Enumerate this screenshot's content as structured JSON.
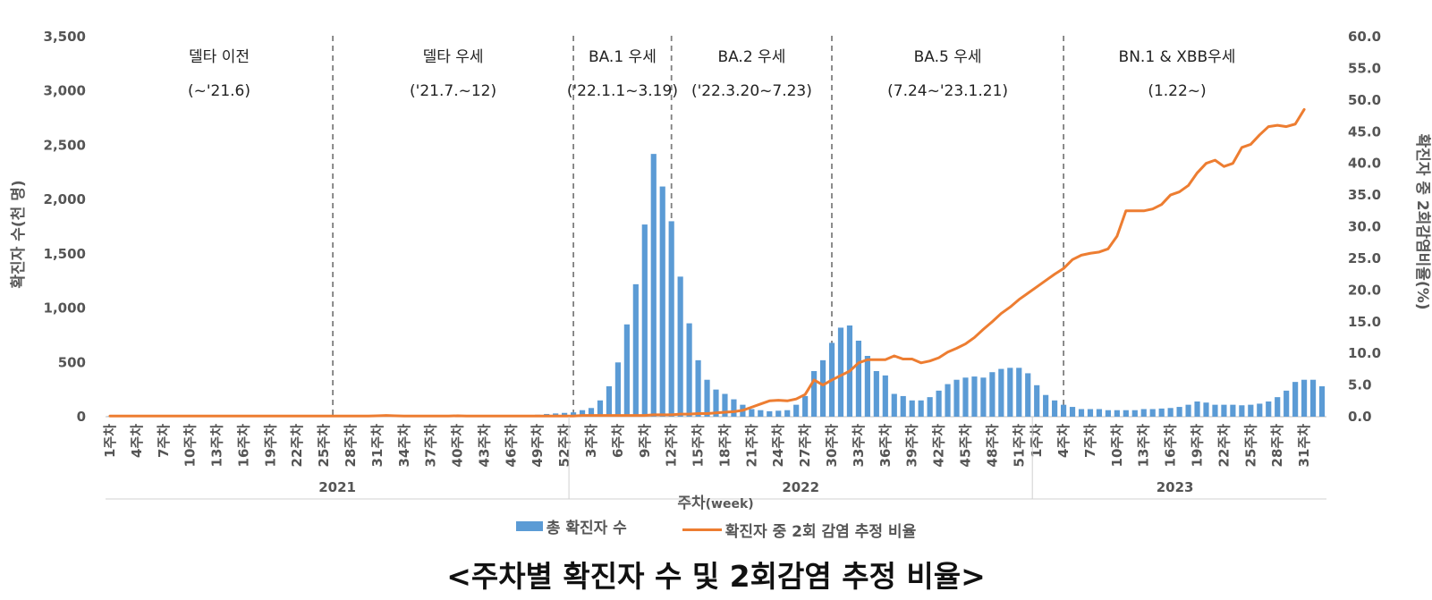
{
  "chart_data": {
    "type": "bar+line",
    "title": "<주차별 확진자 수 및 2회감염 추정 비율>",
    "xlabel_main": "주차",
    "xlabel_unit": "(week)",
    "ylabel_left": "확진자 수(천 명)",
    "ylabel_right": "확진자 중 2회감염비율(%)",
    "ylim_left": [
      0,
      3500
    ],
    "ylim_right": [
      0,
      60
    ],
    "left_ticks": [
      "0",
      "500",
      "1,000",
      "1,500",
      "2,000",
      "2,500",
      "3,000",
      "3,500"
    ],
    "right_ticks": [
      "0.0",
      "5.0",
      "10.0",
      "15.0",
      "20.0",
      "25.0",
      "30.0",
      "35.0",
      "40.0",
      "45.0",
      "50.0",
      "55.0",
      "60.0"
    ],
    "tick_suffix": "주차",
    "years": [
      {
        "label": "2021",
        "weeks": 52,
        "tick_weeks": [
          1,
          4,
          7,
          10,
          13,
          16,
          19,
          22,
          25,
          28,
          31,
          34,
          37,
          40,
          43,
          46,
          49,
          52
        ]
      },
      {
        "label": "2022",
        "weeks": 52,
        "tick_weeks": [
          3,
          6,
          9,
          12,
          15,
          18,
          21,
          24,
          27,
          30,
          33,
          36,
          39,
          42,
          45,
          48,
          51
        ]
      },
      {
        "label": "2023",
        "weeks": 32,
        "tick_weeks": [
          1,
          4,
          7,
          10,
          13,
          16,
          19,
          22,
          25,
          28,
          31
        ]
      }
    ],
    "series": [
      {
        "name": "총 확진자 수",
        "type": "bar",
        "axis": "left",
        "color": "#5b9bd5",
        "values": [
          3,
          3,
          3,
          3,
          3,
          3,
          3,
          3,
          3,
          3,
          3,
          3,
          3,
          3,
          3,
          3,
          3,
          3,
          3,
          3,
          3,
          3,
          3,
          3,
          3,
          3,
          3,
          3,
          4,
          5,
          5,
          5,
          6,
          6,
          6,
          6,
          6,
          6,
          6,
          7,
          7,
          8,
          8,
          9,
          10,
          10,
          12,
          14,
          18,
          25,
          30,
          35,
          40,
          60,
          80,
          150,
          280,
          500,
          850,
          1220,
          1770,
          2420,
          2120,
          1800,
          1290,
          860,
          520,
          340,
          250,
          210,
          160,
          110,
          70,
          60,
          50,
          55,
          60,
          110,
          190,
          420,
          520,
          680,
          820,
          840,
          700,
          560,
          420,
          380,
          210,
          190,
          150,
          150,
          180,
          240,
          300,
          340,
          360,
          370,
          360,
          410,
          440,
          450,
          450,
          400,
          290,
          200,
          150,
          110,
          90,
          70,
          70,
          70,
          60,
          60,
          60,
          60,
          70,
          70,
          75,
          80,
          90,
          110,
          140,
          130,
          110,
          110,
          110,
          105,
          110,
          120,
          140,
          180,
          240,
          320,
          340,
          340,
          280
        ]
      },
      {
        "name": "확진자 중 2회 감염 추정 비율",
        "type": "line",
        "axis": "right",
        "color": "#ed7d31",
        "values": [
          0.1,
          0.1,
          0.1,
          0.1,
          0.1,
          0.1,
          0.1,
          0.1,
          0.1,
          0.1,
          0.1,
          0.1,
          0.1,
          0.1,
          0.1,
          0.1,
          0.1,
          0.1,
          0.1,
          0.1,
          0.1,
          0.1,
          0.1,
          0.1,
          0.1,
          0.1,
          0.1,
          0.1,
          0.1,
          0.1,
          0.15,
          0.2,
          0.15,
          0.1,
          0.1,
          0.1,
          0.1,
          0.1,
          0.1,
          0.15,
          0.1,
          0.1,
          0.1,
          0.1,
          0.1,
          0.1,
          0.1,
          0.1,
          0.1,
          0.1,
          0.1,
          0.1,
          0.1,
          0.2,
          0.2,
          0.2,
          0.2,
          0.2,
          0.2,
          0.2,
          0.2,
          0.3,
          0.3,
          0.3,
          0.4,
          0.4,
          0.5,
          0.5,
          0.6,
          0.7,
          0.8,
          1.0,
          1.5,
          2.0,
          2.5,
          2.6,
          2.5,
          2.8,
          3.5,
          5.8,
          5.0,
          5.8,
          6.5,
          7.2,
          8.5,
          9.0,
          9.0,
          9.0,
          9.6,
          9.1,
          9.1,
          8.5,
          8.8,
          9.3,
          10.2,
          10.8,
          11.5,
          12.5,
          13.8,
          15.0,
          16.3,
          17.3,
          18.5,
          19.5,
          20.5,
          21.5,
          22.5,
          23.4,
          24.8,
          25.5,
          25.8,
          26.0,
          26.5,
          28.5,
          32.5,
          32.5,
          32.5,
          32.8,
          33.5,
          35.0,
          35.5,
          36.5,
          38.5,
          40.0,
          40.5,
          39.5,
          40.0,
          42.5,
          43.0,
          44.5,
          45.8,
          46.0,
          45.8,
          46.2,
          48.5
        ]
      }
    ],
    "variant_periods": [
      {
        "name": "델타 이전",
        "range": "(~'21.6)",
        "divider_after_week_index": 25
      },
      {
        "name": "델타 우세",
        "range": "('21.7.~12)",
        "divider_after_week_index": 52
      },
      {
        "name": "BA.1 우세",
        "range": "('22.1.1~3.19)",
        "divider_after_week_index": 63
      },
      {
        "name": "BA.2 우세",
        "range": "('22.3.20~7.23)",
        "divider_after_week_index": 81
      },
      {
        "name": "BA.5 우세",
        "range": "(7.24~'23.1.21)",
        "divider_after_week_index": 107
      },
      {
        "name": "BN.1 & XBB우세",
        "range": "(1.22~)",
        "divider_after_week_index": null
      }
    ]
  },
  "legend": {
    "bar_label": "총 확진자 수",
    "line_label": "확진자 중 2회 감염 추정 비율"
  },
  "page": {
    "title": "<주차별 확진자 수 및 2회감염 추정 비율>"
  }
}
